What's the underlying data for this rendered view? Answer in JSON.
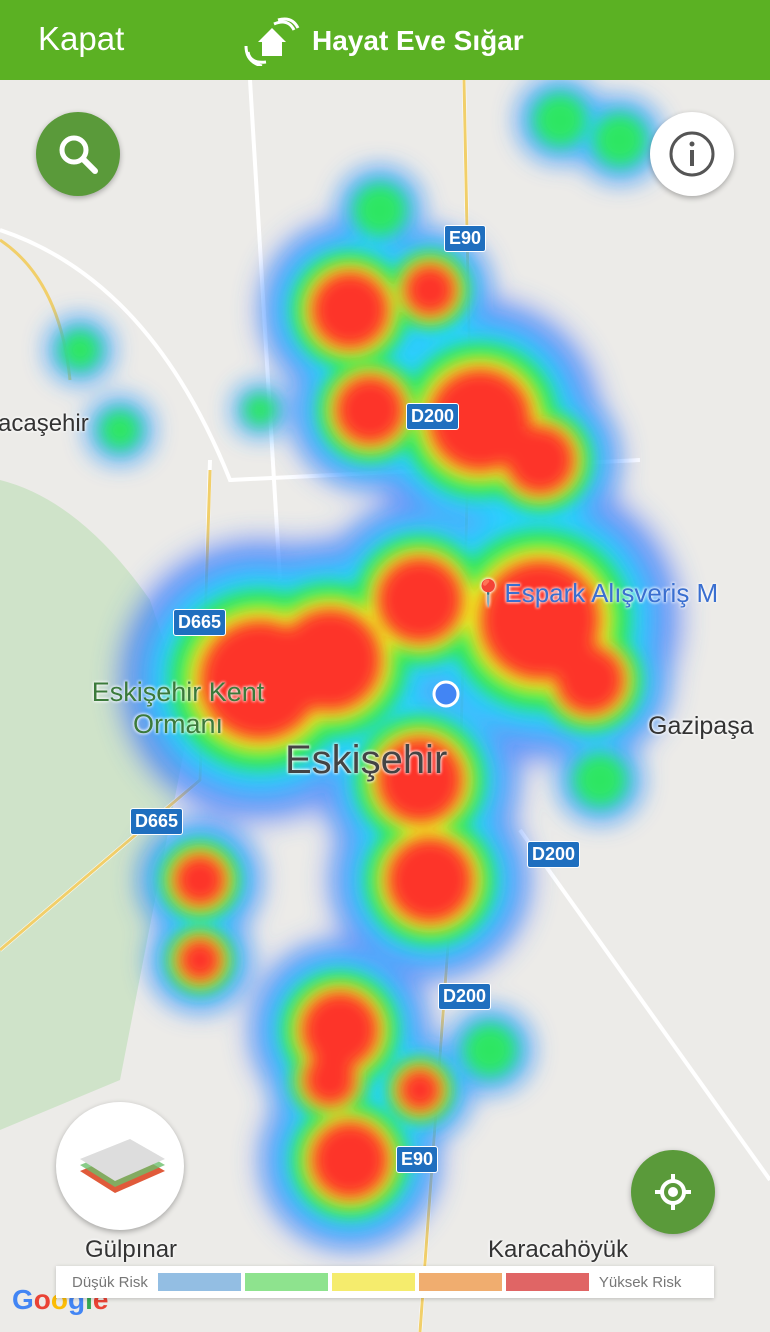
{
  "header": {
    "close_label": "Kapat",
    "app_title": "Hayat Eve Sığar",
    "logo_icon": "house-hands-icon",
    "background": "#5bb123"
  },
  "map": {
    "place_labels": [
      "acaşehir",
      "Espark Alışveriş M",
      "Eskişehir Kent Ormanı",
      "Eskişehir",
      "Gazipaşa",
      "Gülpınar",
      "Karacahöyük"
    ],
    "road_shields": [
      "E90",
      "D200",
      "D665",
      "D665",
      "D200",
      "D200",
      "E90"
    ],
    "attribution": "Google",
    "heat_colors": [
      "#3b6cff",
      "#22d6ff",
      "#2ee85a",
      "#f5f21f",
      "#ff2a2a"
    ]
  },
  "buttons": {
    "search_icon": "search-icon",
    "info_icon": "info-icon",
    "layers_icon": "map-layers-icon",
    "locate_icon": "crosshair-icon"
  },
  "legend": {
    "low_label": "Düşük Risk",
    "high_label": "Yüksek Risk",
    "colors": [
      "#93bee3",
      "#8ee38e",
      "#f5ec6d",
      "#f0ad6f",
      "#e06565"
    ]
  }
}
